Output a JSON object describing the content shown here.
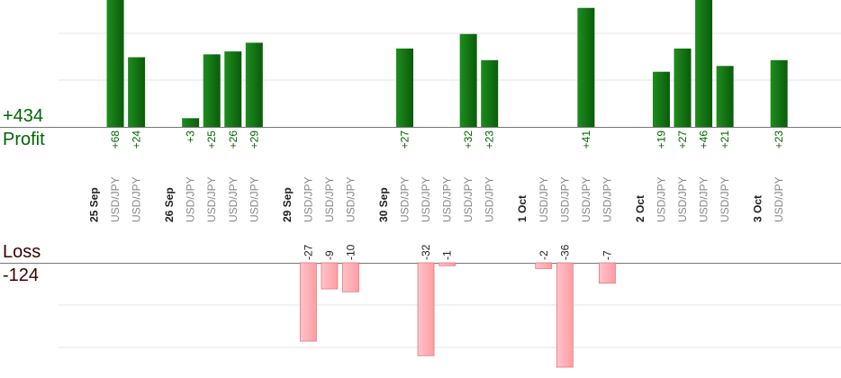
{
  "chart_data": {
    "type": "bar",
    "total_profit": "+434",
    "profit_label": "Profit",
    "loss_label": "Loss",
    "total_loss": "-124",
    "colors": {
      "profit_bar": "#0a6b0a",
      "profit_bar_light": "#1e8c1e",
      "profit_text": "#006600",
      "loss_bar": "#ffb3b8",
      "loss_bar_border": "#e07880",
      "loss_text": "#222222",
      "day_text": "#222222",
      "pair_text": "#888888",
      "grid": "#e6e6e6",
      "axis": "#777777"
    },
    "columns": [
      {
        "kind": "day",
        "label": "25 Sep"
      },
      {
        "kind": "trade",
        "label": "USD/JPY",
        "value": 68
      },
      {
        "kind": "trade",
        "label": "USD/JPY",
        "value": 24
      },
      {
        "kind": "gap"
      },
      {
        "kind": "day",
        "label": "26 Sep"
      },
      {
        "kind": "trade",
        "label": "USD/JPY",
        "value": 3
      },
      {
        "kind": "trade",
        "label": "USD/JPY",
        "value": 25
      },
      {
        "kind": "trade",
        "label": "USD/JPY",
        "value": 26
      },
      {
        "kind": "trade",
        "label": "USD/JPY",
        "value": 29
      },
      {
        "kind": "gap"
      },
      {
        "kind": "day",
        "label": "29 Sep"
      },
      {
        "kind": "trade",
        "label": "USD/JPY",
        "value": -27
      },
      {
        "kind": "trade",
        "label": "USD/JPY",
        "value": -9
      },
      {
        "kind": "trade",
        "label": "USD/JPY",
        "value": -10
      },
      {
        "kind": "gap"
      },
      {
        "kind": "day",
        "label": "30 Sep"
      },
      {
        "kind": "trade",
        "label": "USD/JPY",
        "value": 27
      },
      {
        "kind": "trade",
        "label": "USD/JPY",
        "value": -32
      },
      {
        "kind": "trade",
        "label": "USD/JPY",
        "value": -1
      },
      {
        "kind": "trade",
        "label": "USD/JPY",
        "value": 32
      },
      {
        "kind": "trade",
        "label": "USD/JPY",
        "value": 23
      },
      {
        "kind": "gap"
      },
      {
        "kind": "day",
        "label": "1 Oct"
      },
      {
        "kind": "trade",
        "label": "USD/JPY",
        "value": -2
      },
      {
        "kind": "trade",
        "label": "USD/JPY",
        "value": -36
      },
      {
        "kind": "trade",
        "label": "USD/JPY",
        "value": 41
      },
      {
        "kind": "trade",
        "label": "USD/JPY",
        "value": -7
      },
      {
        "kind": "gap"
      },
      {
        "kind": "day",
        "label": "2 Oct"
      },
      {
        "kind": "trade",
        "label": "USD/JPY",
        "value": 19
      },
      {
        "kind": "trade",
        "label": "USD/JPY",
        "value": 27
      },
      {
        "kind": "trade",
        "label": "USD/JPY",
        "value": 46
      },
      {
        "kind": "trade",
        "label": "USD/JPY",
        "value": 21
      },
      {
        "kind": "gap"
      },
      {
        "kind": "day",
        "label": "3 Oct"
      },
      {
        "kind": "trade",
        "label": "USD/JPY",
        "value": 23
      }
    ]
  }
}
